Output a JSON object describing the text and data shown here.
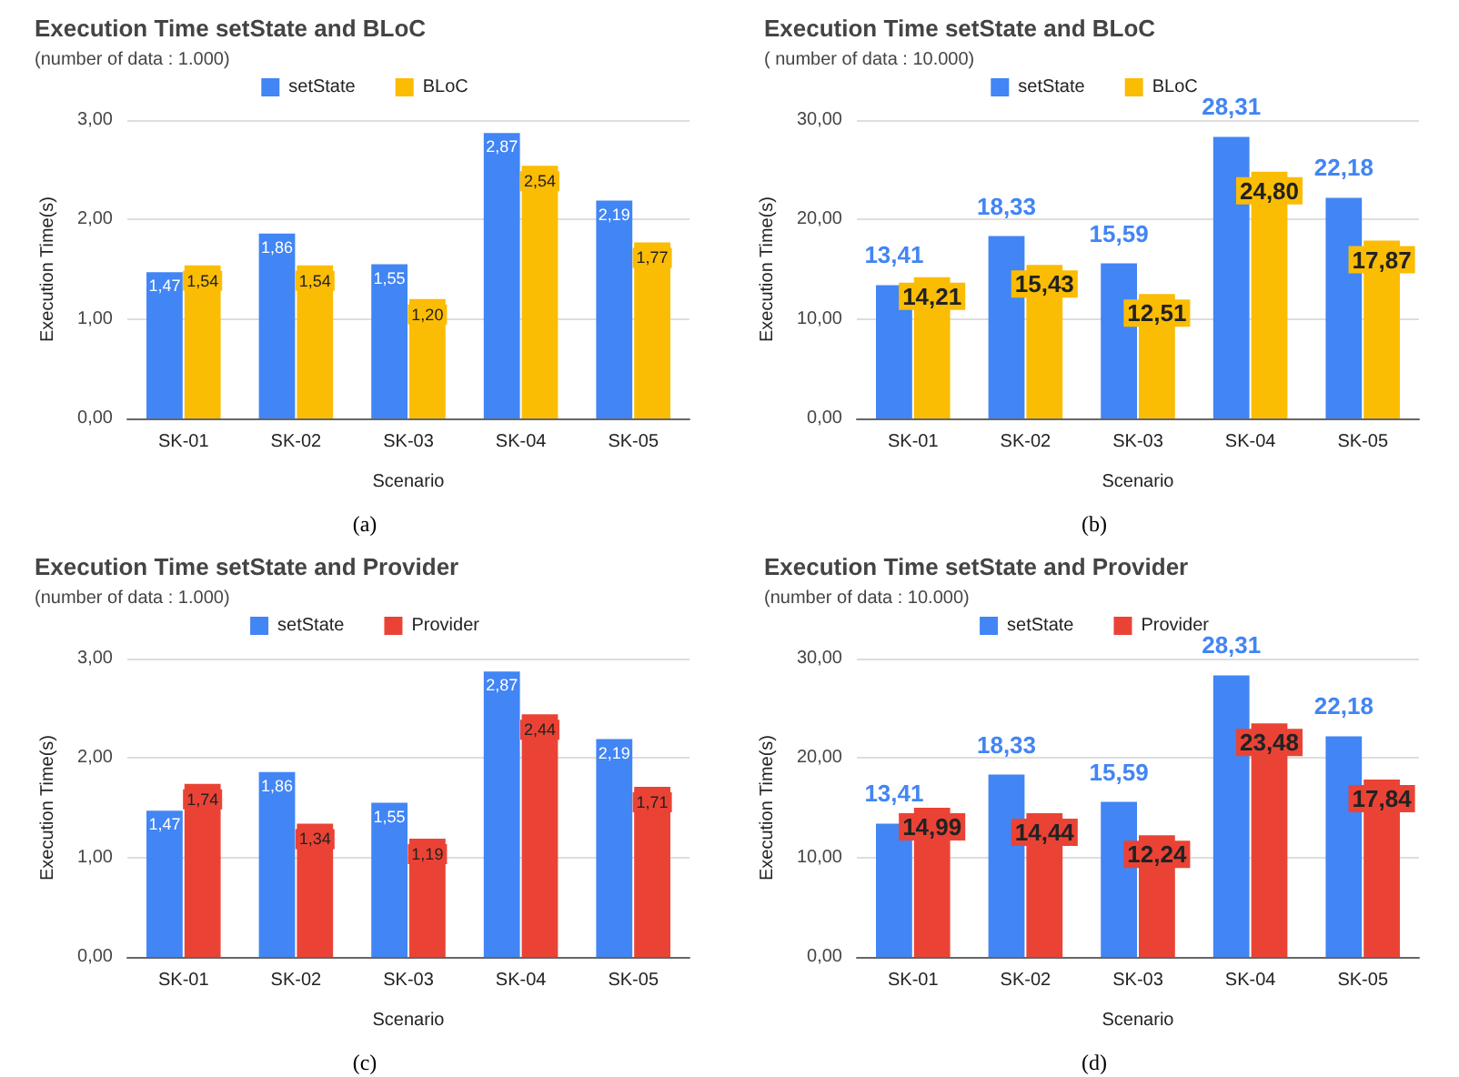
{
  "chart_data": [
    {
      "type": "bar",
      "title": "Execution Time setState and BLoC",
      "subtitle": "(number of data : 1.000)",
      "xlabel": "Scenario",
      "ylabel": "Execution Time(s)",
      "annotations": [
        "(a)"
      ],
      "categories": [
        "SK-01",
        "SK-02",
        "SK-03",
        "SK-04",
        "SK-05"
      ],
      "series": [
        {
          "name": "setState",
          "color": "#4285f4",
          "values": [
            1.47,
            1.86,
            1.55,
            2.87,
            2.19
          ],
          "value_labels": [
            "1,47",
            "1,86",
            "1,55",
            "2,87",
            "2,19"
          ]
        },
        {
          "name": "BLoC",
          "color": "#fbbc04",
          "values": [
            1.54,
            1.54,
            1.2,
            2.54,
            1.77
          ],
          "value_labels": [
            "1,54",
            "1,54",
            "1,20",
            "2,54",
            "1,77"
          ]
        }
      ],
      "ylim": [
        0,
        3
      ],
      "yticks": [
        {
          "value": 0,
          "label": "0,00"
        },
        {
          "value": 1,
          "label": "1,00"
        },
        {
          "value": 2,
          "label": "2,00"
        },
        {
          "value": 3,
          "label": "3,00"
        }
      ],
      "grid": "y",
      "legend": "top"
    },
    {
      "type": "bar",
      "title": "Execution Time setState and BLoC",
      "subtitle": "( number of data : 10.000)",
      "xlabel": "Scenario",
      "ylabel": "Execution Time(s)",
      "annotations": [
        "(b)"
      ],
      "categories": [
        "SK-01",
        "SK-02",
        "SK-03",
        "SK-04",
        "SK-05"
      ],
      "series": [
        {
          "name": "setState",
          "color": "#4285f4",
          "values": [
            13.41,
            18.33,
            15.59,
            28.31,
            22.18
          ],
          "value_labels": [
            "13,41",
            "18,33",
            "15,59",
            "28,31",
            "22,18"
          ]
        },
        {
          "name": "BLoC",
          "color": "#fbbc04",
          "values": [
            14.21,
            15.43,
            12.51,
            24.8,
            17.87
          ],
          "value_labels": [
            "14,21",
            "15,43",
            "12,51",
            "24,80",
            "17,87"
          ]
        }
      ],
      "ylim": [
        0,
        30
      ],
      "yticks": [
        {
          "value": 0,
          "label": "0,00"
        },
        {
          "value": 10,
          "label": "10,00"
        },
        {
          "value": 20,
          "label": "20,00"
        },
        {
          "value": 30,
          "label": "30,00"
        }
      ],
      "grid": "y",
      "legend": "top"
    },
    {
      "type": "bar",
      "title": "Execution Time setState and Provider",
      "subtitle": "(number of data : 1.000)",
      "xlabel": "Scenario",
      "ylabel": "Execution Time(s)",
      "annotations": [
        "(c)"
      ],
      "categories": [
        "SK-01",
        "SK-02",
        "SK-03",
        "SK-04",
        "SK-05"
      ],
      "series": [
        {
          "name": "setState",
          "color": "#4285f4",
          "values": [
            1.47,
            1.86,
            1.55,
            2.87,
            2.19
          ],
          "value_labels": [
            "1,47",
            "1,86",
            "1,55",
            "2,87",
            "2,19"
          ]
        },
        {
          "name": "Provider",
          "color": "#ea4335",
          "values": [
            1.74,
            1.34,
            1.19,
            2.44,
            1.71
          ],
          "value_labels": [
            "1,74",
            "1,34",
            "1,19",
            "2,44",
            "1,71"
          ]
        }
      ],
      "ylim": [
        0,
        3
      ],
      "yticks": [
        {
          "value": 0,
          "label": "0,00"
        },
        {
          "value": 1,
          "label": "1,00"
        },
        {
          "value": 2,
          "label": "2,00"
        },
        {
          "value": 3,
          "label": "3,00"
        }
      ],
      "grid": "y",
      "legend": "top"
    },
    {
      "type": "bar",
      "title": "Execution Time setState and Provider",
      "subtitle": "(number of data : 10.000)",
      "xlabel": "Scenario",
      "ylabel": "Execution Time(s)",
      "annotations": [
        "(d)"
      ],
      "categories": [
        "SK-01",
        "SK-02",
        "SK-03",
        "SK-04",
        "SK-05"
      ],
      "series": [
        {
          "name": "setState",
          "color": "#4285f4",
          "values": [
            13.41,
            18.33,
            15.59,
            28.31,
            22.18
          ],
          "value_labels": [
            "13,41",
            "18,33",
            "15,59",
            "28,31",
            "22,18"
          ]
        },
        {
          "name": "Provider",
          "color": "#ea4335",
          "values": [
            14.99,
            14.44,
            12.24,
            23.48,
            17.84
          ],
          "value_labels": [
            "14,99",
            "14,44",
            "12,24",
            "23,48",
            "17,84"
          ]
        }
      ],
      "ylim": [
        0,
        30
      ],
      "yticks": [
        {
          "value": 0,
          "label": "0,00"
        },
        {
          "value": 10,
          "label": "10,00"
        },
        {
          "value": 20,
          "label": "20,00"
        },
        {
          "value": 30,
          "label": "30,00"
        }
      ],
      "grid": "y",
      "legend": "top"
    }
  ]
}
